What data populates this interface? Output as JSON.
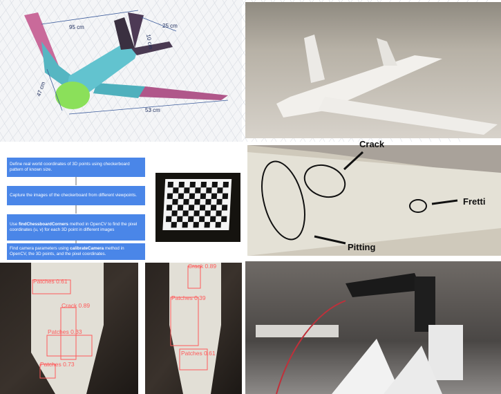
{
  "cad_panel": {
    "dimensions": [
      "95 cm",
      "25 cm",
      "10 cm",
      "47 cm",
      "53 cm"
    ]
  },
  "flowchart": {
    "steps": [
      "Define real world coordinates of 3D points using checkerboard pattern of known size.",
      "Capture the images of the checkerboard from different viewpoints."
    ],
    "step3": {
      "before": "Use",
      "method": "findChessboardCorners",
      "after": "method in OpenCV to find the pixel coordinates (u, v) for each 3D point in different images"
    },
    "step4": {
      "before": "Find camera parameters using",
      "method": "calibrateCamera",
      "after": "method in OpenCV, the 3D points, and the pixel coordinates."
    }
  },
  "defect_panel": {
    "labels": [
      "Crack",
      "Fretti",
      "Pitting"
    ]
  },
  "detections_left": [
    "Patches 0.61",
    "Crack 0.89",
    "Patches 0.33",
    "Patches 0.73"
  ],
  "detections_middle": [
    "Crack 0.89",
    "Patches 0.39",
    "Patches 0.61"
  ]
}
